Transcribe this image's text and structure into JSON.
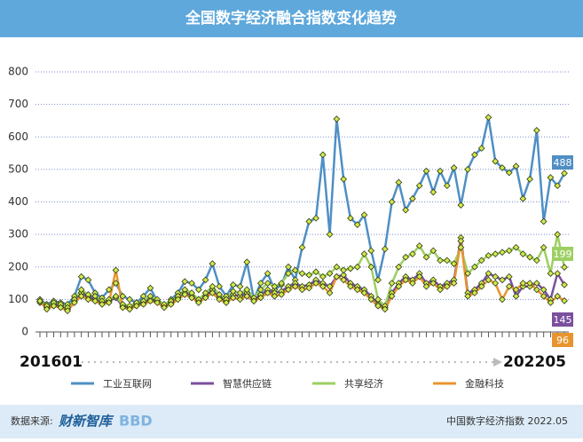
{
  "chart_data": {
    "type": "line",
    "title": "全国数字经济融合指数变化趋势",
    "categories": [
      "201601",
      null,
      null,
      null,
      null,
      null,
      null,
      null,
      null,
      null,
      null,
      null,
      null,
      null,
      null,
      null,
      null,
      null,
      null,
      null,
      null,
      null,
      null,
      null,
      null,
      null,
      null,
      null,
      null,
      null,
      null,
      null,
      null,
      null,
      null,
      null,
      null,
      null,
      null,
      null,
      null,
      null,
      null,
      null,
      null,
      null,
      null,
      null,
      null,
      null,
      null,
      null,
      null,
      null,
      null,
      null,
      null,
      null,
      null,
      null,
      null,
      null,
      null,
      null,
      null,
      null,
      null,
      null,
      null,
      null,
      null,
      null,
      null,
      null,
      null,
      null,
      "202205"
    ],
    "ylim": [
      0,
      800
    ],
    "yticks": [
      0,
      100,
      200,
      300,
      400,
      500,
      600,
      700,
      800
    ],
    "grid": true,
    "marker_color": "#d4e84a",
    "series": [
      {
        "name": "工业互联网",
        "color": "#4f8fc4",
        "values": [
          100,
          85,
          95,
          90,
          85,
          110,
          170,
          160,
          120,
          105,
          130,
          150,
          110,
          100,
          90,
          110,
          135,
          95,
          80,
          100,
          120,
          155,
          150,
          130,
          160,
          210,
          140,
          110,
          145,
          140,
          215,
          100,
          150,
          180,
          130,
          145,
          200,
          160,
          260,
          340,
          350,
          545,
          300,
          655,
          470,
          350,
          330,
          360,
          250,
          160,
          255,
          400,
          460,
          375,
          410,
          450,
          495,
          430,
          495,
          450,
          505,
          390,
          500,
          545,
          565,
          660,
          525,
          505,
          490,
          510,
          410,
          470,
          620,
          340,
          475,
          450,
          488
        ]
      },
      {
        "name": "智慧供应链",
        "color": "#7b4f9e",
        "values": [
          90,
          75,
          85,
          80,
          70,
          95,
          120,
          110,
          100,
          90,
          95,
          105,
          80,
          75,
          85,
          90,
          100,
          95,
          80,
          90,
          105,
          120,
          110,
          95,
          110,
          130,
          105,
          95,
          115,
          110,
          120,
          100,
          115,
          130,
          120,
          125,
          140,
          150,
          140,
          145,
          160,
          150,
          140,
          170,
          175,
          150,
          140,
          130,
          110,
          85,
          75,
          120,
          150,
          170,
          160,
          180,
          150,
          160,
          140,
          150,
          160,
          290,
          120,
          130,
          150,
          180,
          170,
          160,
          170,
          110,
          140,
          140,
          150,
          130,
          100,
          180,
          145
        ]
      },
      {
        "name": "共享经济",
        "color": "#9dcf62",
        "values": [
          95,
          80,
          90,
          85,
          75,
          100,
          130,
          115,
          110,
          95,
          100,
          110,
          85,
          80,
          90,
          95,
          110,
          100,
          85,
          95,
          110,
          130,
          120,
          100,
          120,
          140,
          115,
          100,
          125,
          120,
          130,
          105,
          130,
          150,
          140,
          150,
          180,
          190,
          180,
          175,
          185,
          170,
          180,
          200,
          190,
          195,
          200,
          240,
          200,
          100,
          80,
          150,
          200,
          230,
          240,
          265,
          230,
          250,
          220,
          220,
          210,
          260,
          180,
          200,
          220,
          235,
          240,
          245,
          250,
          260,
          240,
          230,
          220,
          260,
          180,
          300,
          199
        ]
      },
      {
        "name": "金融科技",
        "color": "#e8952f",
        "values": [
          95,
          70,
          80,
          75,
          65,
          90,
          110,
          100,
          95,
          85,
          90,
          190,
          75,
          70,
          80,
          85,
          95,
          90,
          75,
          85,
          100,
          115,
          105,
          90,
          105,
          120,
          100,
          90,
          105,
          100,
          110,
          95,
          105,
          120,
          110,
          115,
          130,
          140,
          130,
          135,
          150,
          140,
          120,
          170,
          160,
          140,
          130,
          120,
          100,
          80,
          70,
          110,
          140,
          160,
          150,
          170,
          140,
          150,
          130,
          140,
          150,
          280,
          110,
          120,
          140,
          160,
          150,
          100,
          140,
          130,
          150,
          150,
          130,
          110,
          90,
          110,
          96
        ]
      }
    ]
  },
  "footer": {
    "source_label": "数据来源:",
    "source_name": "财新智库",
    "source_brand": "BBD",
    "note": "中国数字经济指数 2022.05"
  }
}
